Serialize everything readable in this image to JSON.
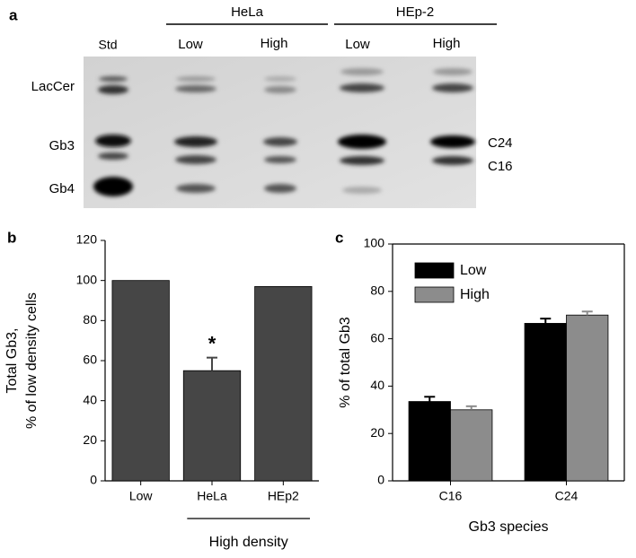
{
  "gel": {
    "panel_label": "a",
    "standard": "Std",
    "groups": [
      {
        "label": "HeLa",
        "lanes": [
          "Low",
          "High"
        ]
      },
      {
        "label": "HEp-2",
        "lanes": [
          "Low",
          "High"
        ]
      }
    ],
    "left_labels": [
      "LacCer",
      "Gb3",
      "Gb4"
    ],
    "right_labels": [
      "C24",
      "C16"
    ]
  },
  "chart_data": [
    {
      "type": "bar",
      "panel_label": "b",
      "y_label": [
        "Total Gb3,",
        "% of low density cells"
      ],
      "categories": [
        "Low",
        "HeLa",
        "HEp2"
      ],
      "values": [
        100,
        55,
        97
      ],
      "errors": [
        null,
        6.5,
        null
      ],
      "color": "#464646",
      "ylim": [
        0,
        120
      ],
      "yticks": [
        0,
        20,
        40,
        60,
        80,
        100,
        120
      ],
      "annotations": [
        {
          "text": "*",
          "category": "HeLa"
        }
      ],
      "x_group": {
        "label": "High density",
        "categories": [
          "HeLa",
          "HEp2"
        ]
      }
    },
    {
      "type": "bar",
      "panel_label": "c",
      "y_label": "% of total Gb3",
      "x_label": "Gb3 species",
      "categories": [
        "C16",
        "C24"
      ],
      "series": [
        {
          "name": "Low",
          "color": "#000000",
          "values": [
            33.5,
            66.5
          ],
          "errors": [
            2,
            2
          ]
        },
        {
          "name": "High",
          "color": "#8c8c8c",
          "values": [
            30,
            70
          ],
          "errors": [
            1.5,
            1.5
          ]
        }
      ],
      "ylim": [
        0,
        100
      ],
      "yticks": [
        0,
        20,
        40,
        60,
        80,
        100
      ],
      "legend": "upper left"
    }
  ]
}
